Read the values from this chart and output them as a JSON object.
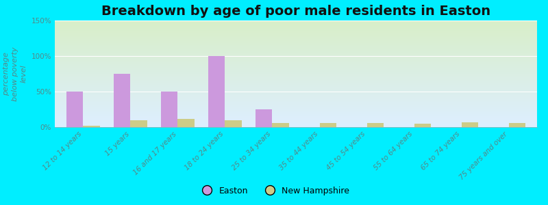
{
  "title": "Breakdown by age of poor male residents in Easton",
  "ylabel": "percentage\nbelow poverty\nlevel",
  "categories": [
    "12 to 14 years",
    "15 years",
    "16 and 17 years",
    "18 to 24 years",
    "25 to 34 years",
    "35 to 44 years",
    "45 to 54 years",
    "55 to 64 years",
    "65 to 74 years",
    "75 years and over"
  ],
  "easton_values": [
    50,
    75,
    50,
    100,
    25,
    0,
    0,
    0,
    0,
    0
  ],
  "nh_values": [
    2,
    10,
    12,
    10,
    6,
    6,
    6,
    5,
    7,
    6
  ],
  "easton_color": "#cc99dd",
  "nh_color": "#cccc88",
  "plot_bg_top": "#ddeeff",
  "plot_bg_bottom": "#d8eec8",
  "outer_bg": "#00eeff",
  "ylim": [
    0,
    150
  ],
  "yticks": [
    0,
    50,
    100,
    150
  ],
  "ytick_labels": [
    "0%",
    "50%",
    "100%",
    "150%"
  ],
  "bar_width": 0.35,
  "title_fontsize": 14,
  "tick_fontsize": 7.5,
  "ylabel_fontsize": 8,
  "legend_fontsize": 9,
  "grid_color": "#ffffff",
  "tick_color": "#558888",
  "ylabel_color": "#558888"
}
